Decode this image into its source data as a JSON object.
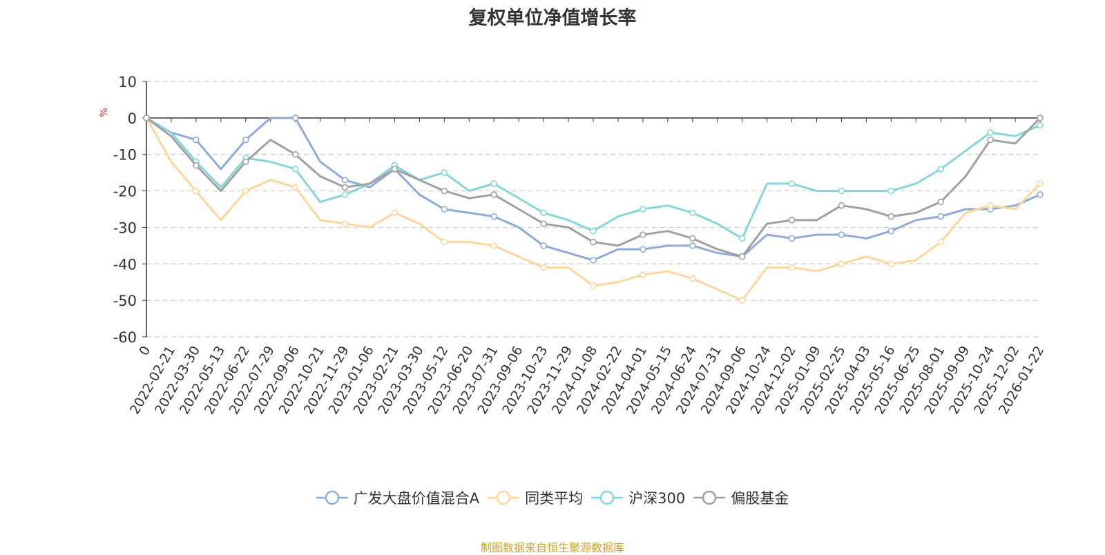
{
  "chart_data": {
    "type": "line",
    "title": "复权单位净值增长率",
    "ylabel": "%",
    "ylim": [
      -60,
      10
    ],
    "yticks": [
      10,
      0,
      -10,
      -20,
      -30,
      -40,
      -50,
      -60
    ],
    "x_labels": [
      "0",
      "2022-02-21",
      "2022-03-30",
      "2022-05-13",
      "2022-06-22",
      "2022-07-29",
      "2022-09-06",
      "2022-10-21",
      "2022-11-29",
      "2023-01-06",
      "2023-02-21",
      "2023-03-30",
      "2023-05-12",
      "2023-06-20",
      "2023-07-31",
      "2023-09-06",
      "2023-10-23",
      "2023-11-29",
      "2024-01-08",
      "2024-02-22",
      "2024-04-01",
      "2024-05-15",
      "2024-06-24",
      "2024-07-31",
      "2024-09-06",
      "2024-10-24",
      "2024-12-02",
      "2025-01-09",
      "2025-02-25",
      "2025-04-03",
      "2025-05-16",
      "2025-06-25",
      "2025-08-01",
      "2025-09-09",
      "2025-10-24",
      "2025-12-02",
      "2026-01-22"
    ],
    "grid": "horizontal-dashed",
    "legend_position": "bottom",
    "series": [
      {
        "name": "广发大盘价值混合A",
        "color": "#8eaad9",
        "values": [
          0,
          -4,
          -6,
          -14,
          -6,
          0,
          0,
          -12,
          -17,
          -19,
          -14,
          -21,
          -25,
          -26,
          -27,
          -30,
          -35,
          -37,
          -39,
          -36,
          -36,
          -35,
          -35,
          -37,
          -38,
          -32,
          -33,
          -32,
          -32,
          -33,
          -31,
          -28,
          -27,
          -25,
          -25,
          -24,
          -21
        ]
      },
      {
        "name": "同类平均",
        "color": "#fdd69b",
        "values": [
          0,
          -12,
          -20,
          -28,
          -20,
          -17,
          -19,
          -28,
          -29,
          -30,
          -26,
          -29,
          -34,
          -34,
          -35,
          -38,
          -41,
          -41,
          -46,
          -45,
          -43,
          -42,
          -44,
          -47,
          -50,
          -41,
          -41,
          -42,
          -40,
          -38,
          -40,
          -39,
          -34,
          -26,
          -24,
          -25,
          -18
        ]
      },
      {
        "name": "沪深300",
        "color": "#84d6d8",
        "values": [
          0,
          -4,
          -12,
          -19,
          -11,
          -12,
          -14,
          -23,
          -21,
          -18,
          -13,
          -17,
          -15,
          -20,
          -18,
          -22,
          -26,
          -28,
          -31,
          -27,
          -25,
          -24,
          -26,
          -29,
          -33,
          -18,
          -18,
          -20,
          -20,
          -20,
          -20,
          -18,
          -14,
          -9,
          -4,
          -5,
          -2
        ]
      },
      {
        "name": "偏股基金",
        "color": "#a0a0a0",
        "values": [
          0,
          -5,
          -13,
          -20,
          -12,
          -6,
          -10,
          -16,
          -19,
          -18,
          -14,
          -17,
          -20,
          -22,
          -21,
          -25,
          -29,
          -30,
          -34,
          -35,
          -32,
          -31,
          -33,
          -36,
          -38,
          -29,
          -28,
          -28,
          -24,
          -25,
          -27,
          -26,
          -23,
          -16,
          -6,
          -7,
          0
        ]
      }
    ]
  },
  "source": "制图数据来自恒生聚源数据库"
}
